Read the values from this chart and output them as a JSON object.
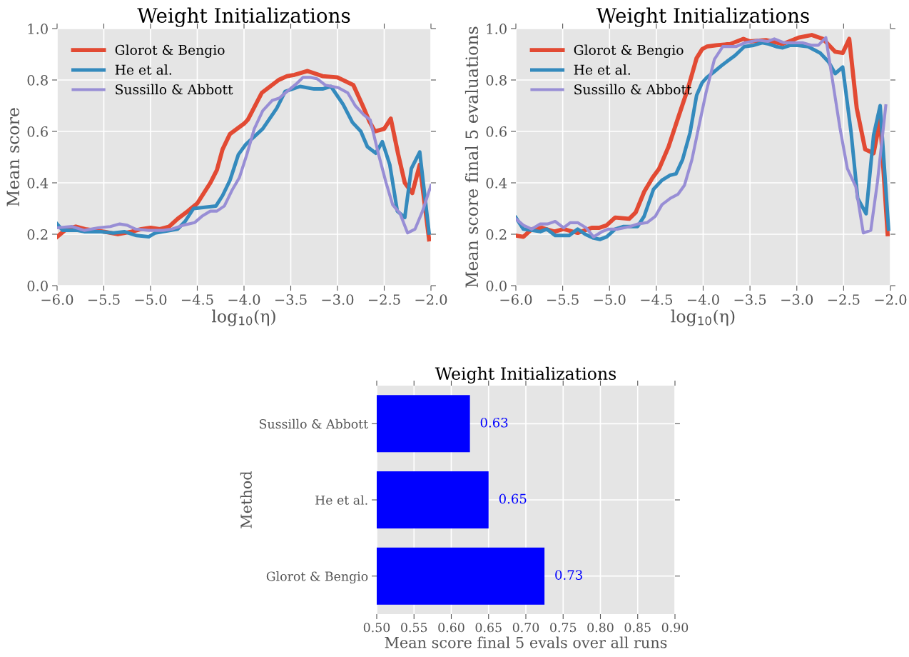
{
  "chart_data": [
    {
      "type": "line",
      "title": "Weight Initializations",
      "xlabel": "log$_{10}$(η)",
      "ylabel": "Mean score",
      "legend": "top left",
      "grid": true,
      "xlim": [
        -6,
        -2
      ],
      "ylim": [
        0,
        1
      ],
      "xticks": [
        {
          "value": -6,
          "label": "−6.0"
        },
        {
          "value": -5.5,
          "label": "−5.5"
        },
        {
          "value": -5,
          "label": "−5.0"
        },
        {
          "value": -4.5,
          "label": "−4.5"
        },
        {
          "value": -4,
          "label": "−4.0"
        },
        {
          "value": -3.5,
          "label": "−3.5"
        },
        {
          "value": -3,
          "label": "−3.0"
        },
        {
          "value": -2.5,
          "label": "−2.5"
        },
        {
          "value": -2,
          "label": "−2.0"
        }
      ],
      "yticks": [
        {
          "value": 0,
          "label": "0.0"
        },
        {
          "value": 0.2,
          "label": "0.2"
        },
        {
          "value": 0.4,
          "label": "0.4"
        },
        {
          "value": 0.6,
          "label": "0.6"
        },
        {
          "value": 0.8,
          "label": "0.8"
        },
        {
          "value": 1,
          "label": "1.0"
        }
      ],
      "series": [
        {
          "name": "Glorot & Bengio",
          "color": "#e24a33",
          "x": [
            -6.0,
            -5.9,
            -5.8,
            -5.7,
            -5.6,
            -5.5,
            -5.35,
            -5.2,
            -5.1,
            -5.0,
            -4.9,
            -4.8,
            -4.71,
            -4.6,
            -4.5,
            -4.36,
            -4.29,
            -4.23,
            -4.15,
            -4.0,
            -3.96,
            -3.81,
            -3.72,
            -3.63,
            -3.54,
            -3.46,
            -3.32,
            -3.16,
            -3.0,
            -2.83,
            -2.73,
            -2.66,
            -2.6,
            -2.5,
            -2.43,
            -2.35,
            -2.28,
            -2.2,
            -2.12,
            -2.02
          ],
          "values": [
            0.19,
            0.22,
            0.23,
            0.22,
            0.215,
            0.21,
            0.2,
            0.21,
            0.22,
            0.225,
            0.22,
            0.23,
            0.26,
            0.29,
            0.32,
            0.4,
            0.45,
            0.53,
            0.59,
            0.63,
            0.645,
            0.75,
            0.775,
            0.8,
            0.815,
            0.82,
            0.835,
            0.815,
            0.81,
            0.78,
            0.7,
            0.64,
            0.6,
            0.61,
            0.65,
            0.51,
            0.4,
            0.36,
            0.47,
            0.18
          ]
        },
        {
          "name": "He et al.",
          "color": "#348abd",
          "x": [
            -6.0,
            -5.94,
            -5.78,
            -5.71,
            -5.53,
            -5.4,
            -5.28,
            -5.15,
            -5.02,
            -4.95,
            -4.71,
            -4.63,
            -4.54,
            -4.42,
            -4.3,
            -4.23,
            -4.15,
            -4.06,
            -3.98,
            -3.92,
            -3.8,
            -3.65,
            -3.56,
            -3.4,
            -3.25,
            -3.16,
            -3.07,
            -2.94,
            -2.84,
            -2.75,
            -2.68,
            -2.59,
            -2.52,
            -2.44,
            -2.36,
            -2.28,
            -2.21,
            -2.12,
            -2.02
          ],
          "values": [
            0.24,
            0.215,
            0.215,
            0.21,
            0.21,
            0.205,
            0.21,
            0.195,
            0.19,
            0.205,
            0.22,
            0.25,
            0.3,
            0.305,
            0.31,
            0.35,
            0.41,
            0.51,
            0.55,
            0.57,
            0.61,
            0.69,
            0.755,
            0.775,
            0.765,
            0.765,
            0.775,
            0.705,
            0.635,
            0.6,
            0.54,
            0.515,
            0.56,
            0.47,
            0.29,
            0.265,
            0.455,
            0.52,
            0.205
          ]
        },
        {
          "name": "Sussillo & Abbott",
          "color": "#988ed5",
          "x": [
            -6.0,
            -5.84,
            -5.71,
            -5.56,
            -5.43,
            -5.33,
            -5.25,
            -5.16,
            -5.02,
            -4.87,
            -4.77,
            -4.65,
            -4.53,
            -4.45,
            -4.36,
            -4.29,
            -4.21,
            -4.13,
            -4.05,
            -3.97,
            -3.89,
            -3.8,
            -3.7,
            -3.62,
            -3.54,
            -3.44,
            -3.37,
            -3.29,
            -3.22,
            -3.13,
            -2.99,
            -2.89,
            -2.81,
            -2.72,
            -2.65,
            -2.56,
            -2.48,
            -2.41,
            -2.33,
            -2.25,
            -2.17,
            -2.09,
            -2.0
          ],
          "values": [
            0.225,
            0.23,
            0.215,
            0.225,
            0.23,
            0.24,
            0.235,
            0.22,
            0.215,
            0.215,
            0.22,
            0.235,
            0.245,
            0.27,
            0.29,
            0.29,
            0.31,
            0.37,
            0.42,
            0.51,
            0.61,
            0.68,
            0.72,
            0.73,
            0.755,
            0.785,
            0.81,
            0.81,
            0.805,
            0.78,
            0.77,
            0.75,
            0.7,
            0.665,
            0.645,
            0.51,
            0.4,
            0.315,
            0.28,
            0.205,
            0.22,
            0.29,
            0.39
          ]
        }
      ]
    },
    {
      "type": "line",
      "title": "Weight Initializations",
      "xlabel": "log$_{10}$(η)",
      "ylabel": "Mean score final 5 evaluations",
      "legend": "top left",
      "grid": true,
      "xlim": [
        -6,
        -2
      ],
      "ylim": [
        0,
        1
      ],
      "xticks": [
        {
          "value": -6,
          "label": "−6.0"
        },
        {
          "value": -5.5,
          "label": "−5.5"
        },
        {
          "value": -5,
          "label": "−5.0"
        },
        {
          "value": -4.5,
          "label": "−4.5"
        },
        {
          "value": -4,
          "label": "−4.0"
        },
        {
          "value": -3.5,
          "label": "−3.5"
        },
        {
          "value": -3,
          "label": "−3.0"
        },
        {
          "value": -2.5,
          "label": "−2.5"
        },
        {
          "value": -2,
          "label": "−2.0"
        }
      ],
      "yticks": [
        {
          "value": 0,
          "label": "0.0"
        },
        {
          "value": 0.2,
          "label": "0.2"
        },
        {
          "value": 0.4,
          "label": "0.4"
        },
        {
          "value": 0.6,
          "label": "0.6"
        },
        {
          "value": 0.8,
          "label": "0.8"
        },
        {
          "value": 1,
          "label": "1.0"
        }
      ],
      "series": [
        {
          "name": "Glorot & Bengio",
          "color": "#e24a33",
          "x": [
            -6.0,
            -5.92,
            -5.83,
            -5.72,
            -5.59,
            -5.49,
            -5.34,
            -5.19,
            -5.11,
            -5.03,
            -4.94,
            -4.79,
            -4.72,
            -4.63,
            -4.54,
            -4.47,
            -4.37,
            -4.27,
            -4.16,
            -4.07,
            -4.01,
            -3.96,
            -3.86,
            -3.71,
            -3.57,
            -3.5,
            -3.33,
            -3.15,
            -2.98,
            -2.84,
            -2.72,
            -2.59,
            -2.51,
            -2.44,
            -2.36,
            -2.27,
            -2.18,
            -2.11,
            -2.03
          ],
          "values": [
            0.195,
            0.19,
            0.22,
            0.225,
            0.21,
            0.22,
            0.205,
            0.225,
            0.225,
            0.235,
            0.265,
            0.26,
            0.285,
            0.365,
            0.42,
            0.455,
            0.54,
            0.65,
            0.77,
            0.885,
            0.92,
            0.93,
            0.935,
            0.94,
            0.96,
            0.95,
            0.955,
            0.94,
            0.965,
            0.975,
            0.96,
            0.91,
            0.905,
            0.96,
            0.69,
            0.53,
            0.515,
            0.645,
            0.2
          ]
        },
        {
          "name": "He et al.",
          "color": "#348abd",
          "x": [
            -6.0,
            -5.92,
            -5.82,
            -5.74,
            -5.67,
            -5.58,
            -5.43,
            -5.34,
            -5.26,
            -5.17,
            -5.1,
            -5.03,
            -4.94,
            -4.85,
            -4.7,
            -4.63,
            -4.53,
            -4.44,
            -4.35,
            -4.29,
            -4.22,
            -4.14,
            -4.07,
            -4.01,
            -3.96,
            -3.89,
            -3.79,
            -3.66,
            -3.56,
            -3.46,
            -3.37,
            -3.3,
            -3.22,
            -3.15,
            -3.07,
            -2.99,
            -2.88,
            -2.75,
            -2.66,
            -2.59,
            -2.51,
            -2.42,
            -2.35,
            -2.26,
            -2.18,
            -2.11,
            -2.02
          ],
          "values": [
            0.265,
            0.22,
            0.215,
            0.21,
            0.22,
            0.195,
            0.195,
            0.22,
            0.2,
            0.185,
            0.18,
            0.19,
            0.22,
            0.23,
            0.23,
            0.27,
            0.375,
            0.41,
            0.43,
            0.435,
            0.49,
            0.595,
            0.74,
            0.79,
            0.81,
            0.83,
            0.86,
            0.895,
            0.93,
            0.935,
            0.945,
            0.94,
            0.93,
            0.925,
            0.935,
            0.935,
            0.93,
            0.905,
            0.87,
            0.825,
            0.85,
            0.595,
            0.34,
            0.28,
            0.585,
            0.7,
            0.22
          ]
        },
        {
          "name": "Sussillo & Abbott",
          "color": "#988ed5",
          "x": [
            -6.0,
            -5.92,
            -5.83,
            -5.74,
            -5.66,
            -5.58,
            -5.49,
            -5.42,
            -5.34,
            -5.25,
            -5.17,
            -5.08,
            -5.01,
            -4.91,
            -4.78,
            -4.7,
            -4.6,
            -4.51,
            -4.44,
            -4.35,
            -4.27,
            -4.2,
            -4.12,
            -4.06,
            -3.97,
            -3.88,
            -3.79,
            -3.65,
            -3.55,
            -3.41,
            -3.31,
            -3.24,
            -3.14,
            -3.04,
            -2.94,
            -2.84,
            -2.77,
            -2.69,
            -2.63,
            -2.54,
            -2.46,
            -2.37,
            -2.29,
            -2.21,
            -2.14,
            -2.05
          ],
          "values": [
            0.26,
            0.235,
            0.22,
            0.24,
            0.24,
            0.25,
            0.225,
            0.245,
            0.245,
            0.225,
            0.19,
            0.21,
            0.22,
            0.22,
            0.23,
            0.24,
            0.245,
            0.27,
            0.315,
            0.34,
            0.355,
            0.39,
            0.49,
            0.595,
            0.75,
            0.88,
            0.93,
            0.93,
            0.945,
            0.955,
            0.95,
            0.96,
            0.945,
            0.945,
            0.945,
            0.935,
            0.935,
            0.965,
            0.825,
            0.615,
            0.455,
            0.385,
            0.205,
            0.215,
            0.4,
            0.7
          ]
        }
      ]
    },
    {
      "type": "bar",
      "orientation": "horizontal",
      "title": "Weight Initializations",
      "xlabel": "Mean score final 5 evals over all runs",
      "ylabel": "Method",
      "grid": true,
      "categories": [
        "Sussillo & Abbott",
        "He et al.",
        "Glorot & Bengio"
      ],
      "values": [
        0.625,
        0.65,
        0.725
      ],
      "value_labels": [
        "0.63",
        "0.65",
        "0.73"
      ],
      "color": "#0000ff",
      "xlim": [
        0.5,
        0.9
      ],
      "xticks": [
        {
          "value": 0.5,
          "label": "0.50"
        },
        {
          "value": 0.55,
          "label": "0.55"
        },
        {
          "value": 0.6,
          "label": "0.60"
        },
        {
          "value": 0.65,
          "label": "0.65"
        },
        {
          "value": 0.7,
          "label": "0.70"
        },
        {
          "value": 0.75,
          "label": "0.75"
        },
        {
          "value": 0.8,
          "label": "0.80"
        },
        {
          "value": 0.85,
          "label": "0.85"
        },
        {
          "value": 0.9,
          "label": "0.90"
        }
      ]
    }
  ]
}
